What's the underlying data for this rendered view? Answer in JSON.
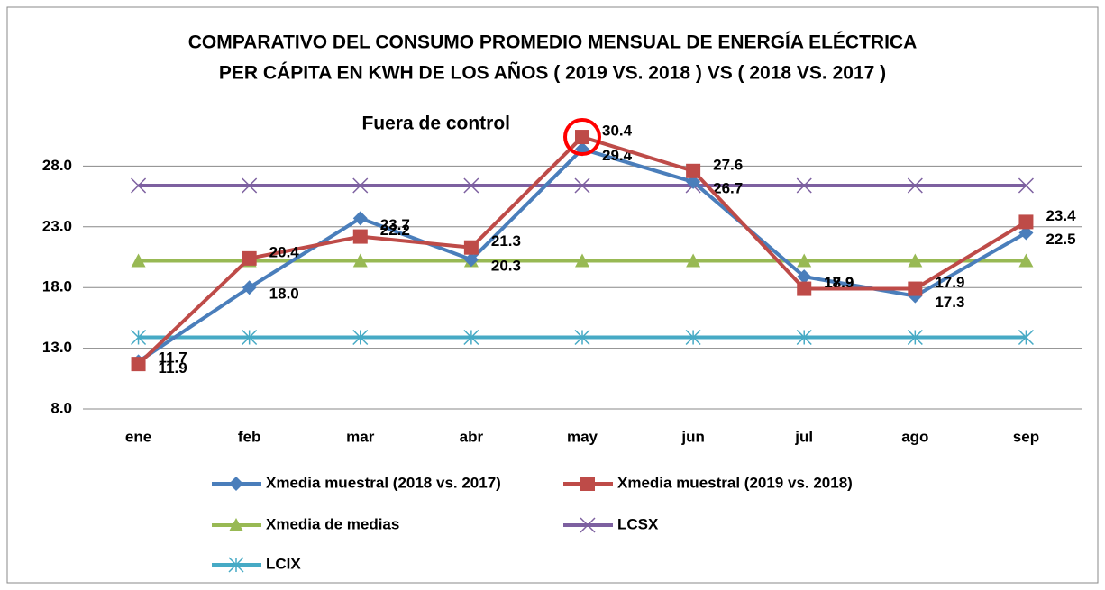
{
  "chart_data": {
    "type": "line",
    "title": [
      "COMPARATIVO DEL CONSUMO PROMEDIO MENSUAL DE ENERGÍA ELÉCTRICA",
      "PER CÁPITA EN KWH DE LOS AÑOS ( 2019 VS. 2018 ) VS ( 2018 VS. 2017 )"
    ],
    "annotation": {
      "text": "Fuera de control",
      "color": "#ff0000",
      "series": 1,
      "index": 4
    },
    "categories": [
      "ene",
      "feb",
      "mar",
      "abr",
      "may",
      "jun",
      "jul",
      "ago",
      "sep"
    ],
    "series": [
      {
        "name": "Xmedia muestral (2018 vs. 2017)",
        "color": "#4a7ebb",
        "marker": "diamond",
        "values": [
          11.9,
          18.0,
          23.7,
          20.3,
          29.4,
          26.7,
          18.9,
          17.3,
          22.5
        ],
        "value_labels": [
          "11.9",
          "18.0",
          "23.7",
          "20.3",
          "29.4",
          "26.7",
          "18.9",
          "17.3",
          "22.5"
        ]
      },
      {
        "name": "Xmedia muestral (2019 vs. 2018)",
        "color": "#be4b48",
        "marker": "square",
        "values": [
          11.7,
          20.4,
          22.2,
          21.3,
          30.4,
          27.6,
          17.9,
          17.9,
          23.4
        ],
        "value_labels": [
          "11.7",
          "20.4",
          "22.2",
          "21.3",
          "30.4",
          "27.6",
          "17.9",
          "17.9",
          "23.4"
        ]
      },
      {
        "name": "Xmedia de medias",
        "color": "#98b954",
        "marker": "triangle",
        "values": [
          20.2,
          20.2,
          20.2,
          20.2,
          20.2,
          20.2,
          20.2,
          20.2,
          20.2
        ]
      },
      {
        "name": "LCSX",
        "color": "#7d60a0",
        "marker": "x",
        "values": [
          26.4,
          26.4,
          26.4,
          26.4,
          26.4,
          26.4,
          26.4,
          26.4,
          26.4
        ]
      },
      {
        "name": "LCIX",
        "color": "#46aac5",
        "marker": "star",
        "values": [
          13.9,
          13.9,
          13.9,
          13.9,
          13.9,
          13.9,
          13.9,
          13.9,
          13.9
        ]
      }
    ],
    "ylim": [
      8,
      33
    ],
    "yticks": [
      {
        "value": 8,
        "label": "8.0"
      },
      {
        "value": 13,
        "label": "13.0"
      },
      {
        "value": 18,
        "label": "18.0"
      },
      {
        "value": 23,
        "label": "23.0"
      },
      {
        "value": 28,
        "label": "28.0"
      }
    ],
    "grid": true
  }
}
